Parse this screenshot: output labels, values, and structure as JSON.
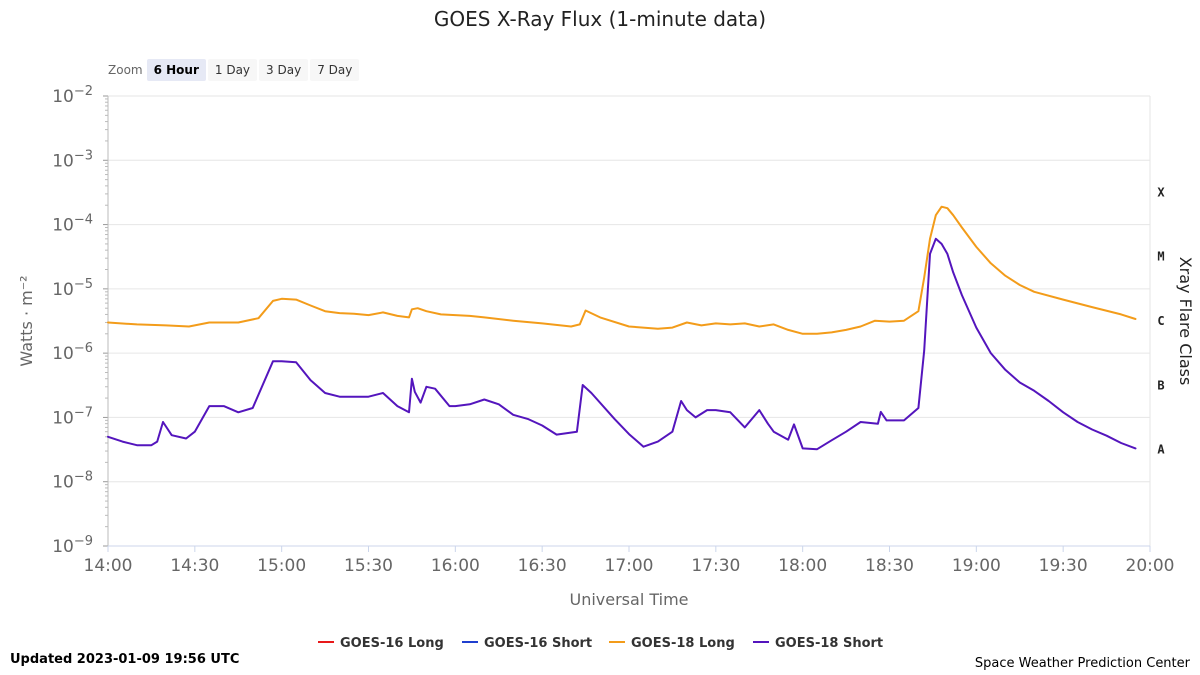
{
  "chart_data": {
    "type": "line",
    "title": "GOES X-Ray Flux (1-minute data)",
    "xlabel": "Universal Time",
    "ylabel": "Watts · m⁻²",
    "y2label": "Xray Flare Class",
    "yscale": "log",
    "ylim": [
      1e-09,
      0.01
    ],
    "xlim": [
      "14:00",
      "20:00"
    ],
    "x_ticks": [
      "14:00",
      "14:30",
      "15:00",
      "15:30",
      "16:00",
      "16:30",
      "17:00",
      "17:30",
      "18:00",
      "18:30",
      "19:00",
      "19:30",
      "20:00"
    ],
    "y_ticks": [
      {
        "base": "10",
        "exp": "−2",
        "value": 0.01
      },
      {
        "base": "10",
        "exp": "−3",
        "value": 0.001
      },
      {
        "base": "10",
        "exp": "−4",
        "value": 0.0001
      },
      {
        "base": "10",
        "exp": "−5",
        "value": 1e-05
      },
      {
        "base": "10",
        "exp": "−6",
        "value": 1e-06
      },
      {
        "base": "10",
        "exp": "−7",
        "value": 1e-07
      },
      {
        "base": "10",
        "exp": "−8",
        "value": 1e-08
      },
      {
        "base": "10",
        "exp": "−9",
        "value": 1e-09
      }
    ],
    "flare_classes": [
      {
        "label": "X",
        "value": 0.000316
      },
      {
        "label": "M",
        "value": 3.16e-05
      },
      {
        "label": "C",
        "value": 3.16e-06
      },
      {
        "label": "B",
        "value": 3.16e-07
      },
      {
        "label": "A",
        "value": 3.16e-08
      }
    ],
    "grid": true,
    "legend_position": "bottom",
    "series": [
      {
        "name": "GOES-16 Long",
        "color": "#e8191a",
        "x": [],
        "values": []
      },
      {
        "name": "GOES-16 Short",
        "color": "#1f3fcf",
        "x": [],
        "values": []
      },
      {
        "name": "GOES-18 Long",
        "color": "#f39c1a",
        "x": [
          "14:00",
          "14:10",
          "14:20",
          "14:28",
          "14:35",
          "14:45",
          "14:52",
          "14:57",
          "15:00",
          "15:05",
          "15:10",
          "15:15",
          "15:20",
          "15:25",
          "15:30",
          "15:35",
          "15:40",
          "15:44",
          "15:45",
          "15:47",
          "15:50",
          "15:55",
          "16:00",
          "16:05",
          "16:10",
          "16:20",
          "16:30",
          "16:40",
          "16:43",
          "16:45",
          "16:50",
          "17:00",
          "17:10",
          "17:15",
          "17:20",
          "17:25",
          "17:30",
          "17:35",
          "17:40",
          "17:45",
          "17:50",
          "17:55",
          "18:00",
          "18:05",
          "18:10",
          "18:15",
          "18:20",
          "18:25",
          "18:30",
          "18:35",
          "18:40",
          "18:42",
          "18:44",
          "18:46",
          "18:48",
          "18:50",
          "18:52",
          "18:55",
          "19:00",
          "19:05",
          "19:10",
          "19:15",
          "19:20",
          "19:30",
          "19:40",
          "19:50",
          "19:55"
        ],
        "values": [
          3e-06,
          2.8e-06,
          2.7e-06,
          2.6e-06,
          3e-06,
          3e-06,
          3.5e-06,
          6.5e-06,
          7e-06,
          6.8e-06,
          5.5e-06,
          4.5e-06,
          4.2e-06,
          4.1e-06,
          3.9e-06,
          4.3e-06,
          3.8e-06,
          3.6e-06,
          4.8e-06,
          5e-06,
          4.5e-06,
          4e-06,
          3.9e-06,
          3.8e-06,
          3.6e-06,
          3.2e-06,
          2.9e-06,
          2.6e-06,
          2.8e-06,
          4.6e-06,
          3.6e-06,
          2.6e-06,
          2.4e-06,
          2.5e-06,
          3e-06,
          2.7e-06,
          2.9e-06,
          2.8e-06,
          2.9e-06,
          2.6e-06,
          2.8e-06,
          2.3e-06,
          2e-06,
          2e-06,
          2.1e-06,
          2.3e-06,
          2.6e-06,
          3.2e-06,
          3.1e-06,
          3.2e-06,
          4.5e-06,
          1.5e-05,
          6e-05,
          0.00014,
          0.00019,
          0.00018,
          0.00014,
          9e-05,
          4.5e-05,
          2.5e-05,
          1.6e-05,
          1.15e-05,
          9e-06,
          6.8e-06,
          5.2e-06,
          4e-06,
          3.4e-06
        ]
      },
      {
        "name": "GOES-18 Short",
        "color": "#5415bd",
        "x": [
          "14:00",
          "14:05",
          "14:10",
          "14:15",
          "14:17",
          "14:19",
          "14:22",
          "14:27",
          "14:30",
          "14:35",
          "14:40",
          "14:45",
          "14:50",
          "14:57",
          "15:00",
          "15:05",
          "15:10",
          "15:15",
          "15:20",
          "15:25",
          "15:30",
          "15:35",
          "15:40",
          "15:44",
          "15:45",
          "15:46",
          "15:48",
          "15:50",
          "15:53",
          "15:58",
          "16:00",
          "16:05",
          "16:10",
          "16:15",
          "16:20",
          "16:25",
          "16:30",
          "16:35",
          "16:42",
          "16:44",
          "16:47",
          "16:55",
          "17:00",
          "17:05",
          "17:10",
          "17:15",
          "17:18",
          "17:20",
          "17:23",
          "17:27",
          "17:30",
          "17:35",
          "17:40",
          "17:45",
          "17:48",
          "17:50",
          "17:55",
          "17:57",
          "18:00",
          "18:05",
          "18:10",
          "18:15",
          "18:20",
          "18:26",
          "18:27",
          "18:29",
          "18:35",
          "18:40",
          "18:42",
          "18:44",
          "18:46",
          "18:48",
          "18:50",
          "18:52",
          "18:55",
          "19:00",
          "19:05",
          "19:10",
          "19:15",
          "19:20",
          "19:25",
          "19:30",
          "19:35",
          "19:40",
          "19:45",
          "19:50",
          "19:55"
        ],
        "values": [
          5e-08,
          4.2e-08,
          3.7e-08,
          3.7e-08,
          4.2e-08,
          8.5e-08,
          5.3e-08,
          4.7e-08,
          6e-08,
          1.5e-07,
          1.5e-07,
          1.2e-07,
          1.4e-07,
          7.5e-07,
          7.5e-07,
          7.2e-07,
          3.8e-07,
          2.4e-07,
          2.1e-07,
          2.1e-07,
          2.1e-07,
          2.4e-07,
          1.5e-07,
          1.2e-07,
          4e-07,
          2.5e-07,
          1.7e-07,
          3e-07,
          2.8e-07,
          1.5e-07,
          1.5e-07,
          1.6e-07,
          1.9e-07,
          1.6e-07,
          1.1e-07,
          9.5e-08,
          7.5e-08,
          5.4e-08,
          6e-08,
          3.2e-07,
          2.4e-07,
          9.5e-08,
          5.5e-08,
          3.5e-08,
          4.2e-08,
          6e-08,
          1.8e-07,
          1.3e-07,
          1e-07,
          1.3e-07,
          1.3e-07,
          1.2e-07,
          7e-08,
          1.3e-07,
          8e-08,
          6e-08,
          4.5e-08,
          7.8e-08,
          3.3e-08,
          3.2e-08,
          4.4e-08,
          6e-08,
          8.5e-08,
          8e-08,
          1.22e-07,
          9e-08,
          9e-08,
          1.4e-07,
          1.1e-06,
          3.5e-05,
          6e-05,
          5e-05,
          3.5e-05,
          1.8e-05,
          8e-06,
          2.5e-06,
          1e-06,
          5.5e-07,
          3.5e-07,
          2.6e-07,
          1.8e-07,
          1.2e-07,
          8.5e-08,
          6.5e-08,
          5.2e-08,
          4e-08,
          3.3e-08
        ]
      }
    ]
  },
  "zoom": {
    "label": "Zoom",
    "buttons": [
      {
        "label": "6 Hour",
        "active": true
      },
      {
        "label": "1 Day",
        "active": false
      },
      {
        "label": "3 Day",
        "active": false
      },
      {
        "label": "7 Day",
        "active": false
      }
    ]
  },
  "footer": {
    "updated": "Updated 2023-01-09 19:56 UTC",
    "credit": "Space Weather Prediction Center"
  },
  "colors": {
    "grid": "#e6e6e6",
    "axis_text": "#666666",
    "axis_line": "#ccd6eb"
  }
}
